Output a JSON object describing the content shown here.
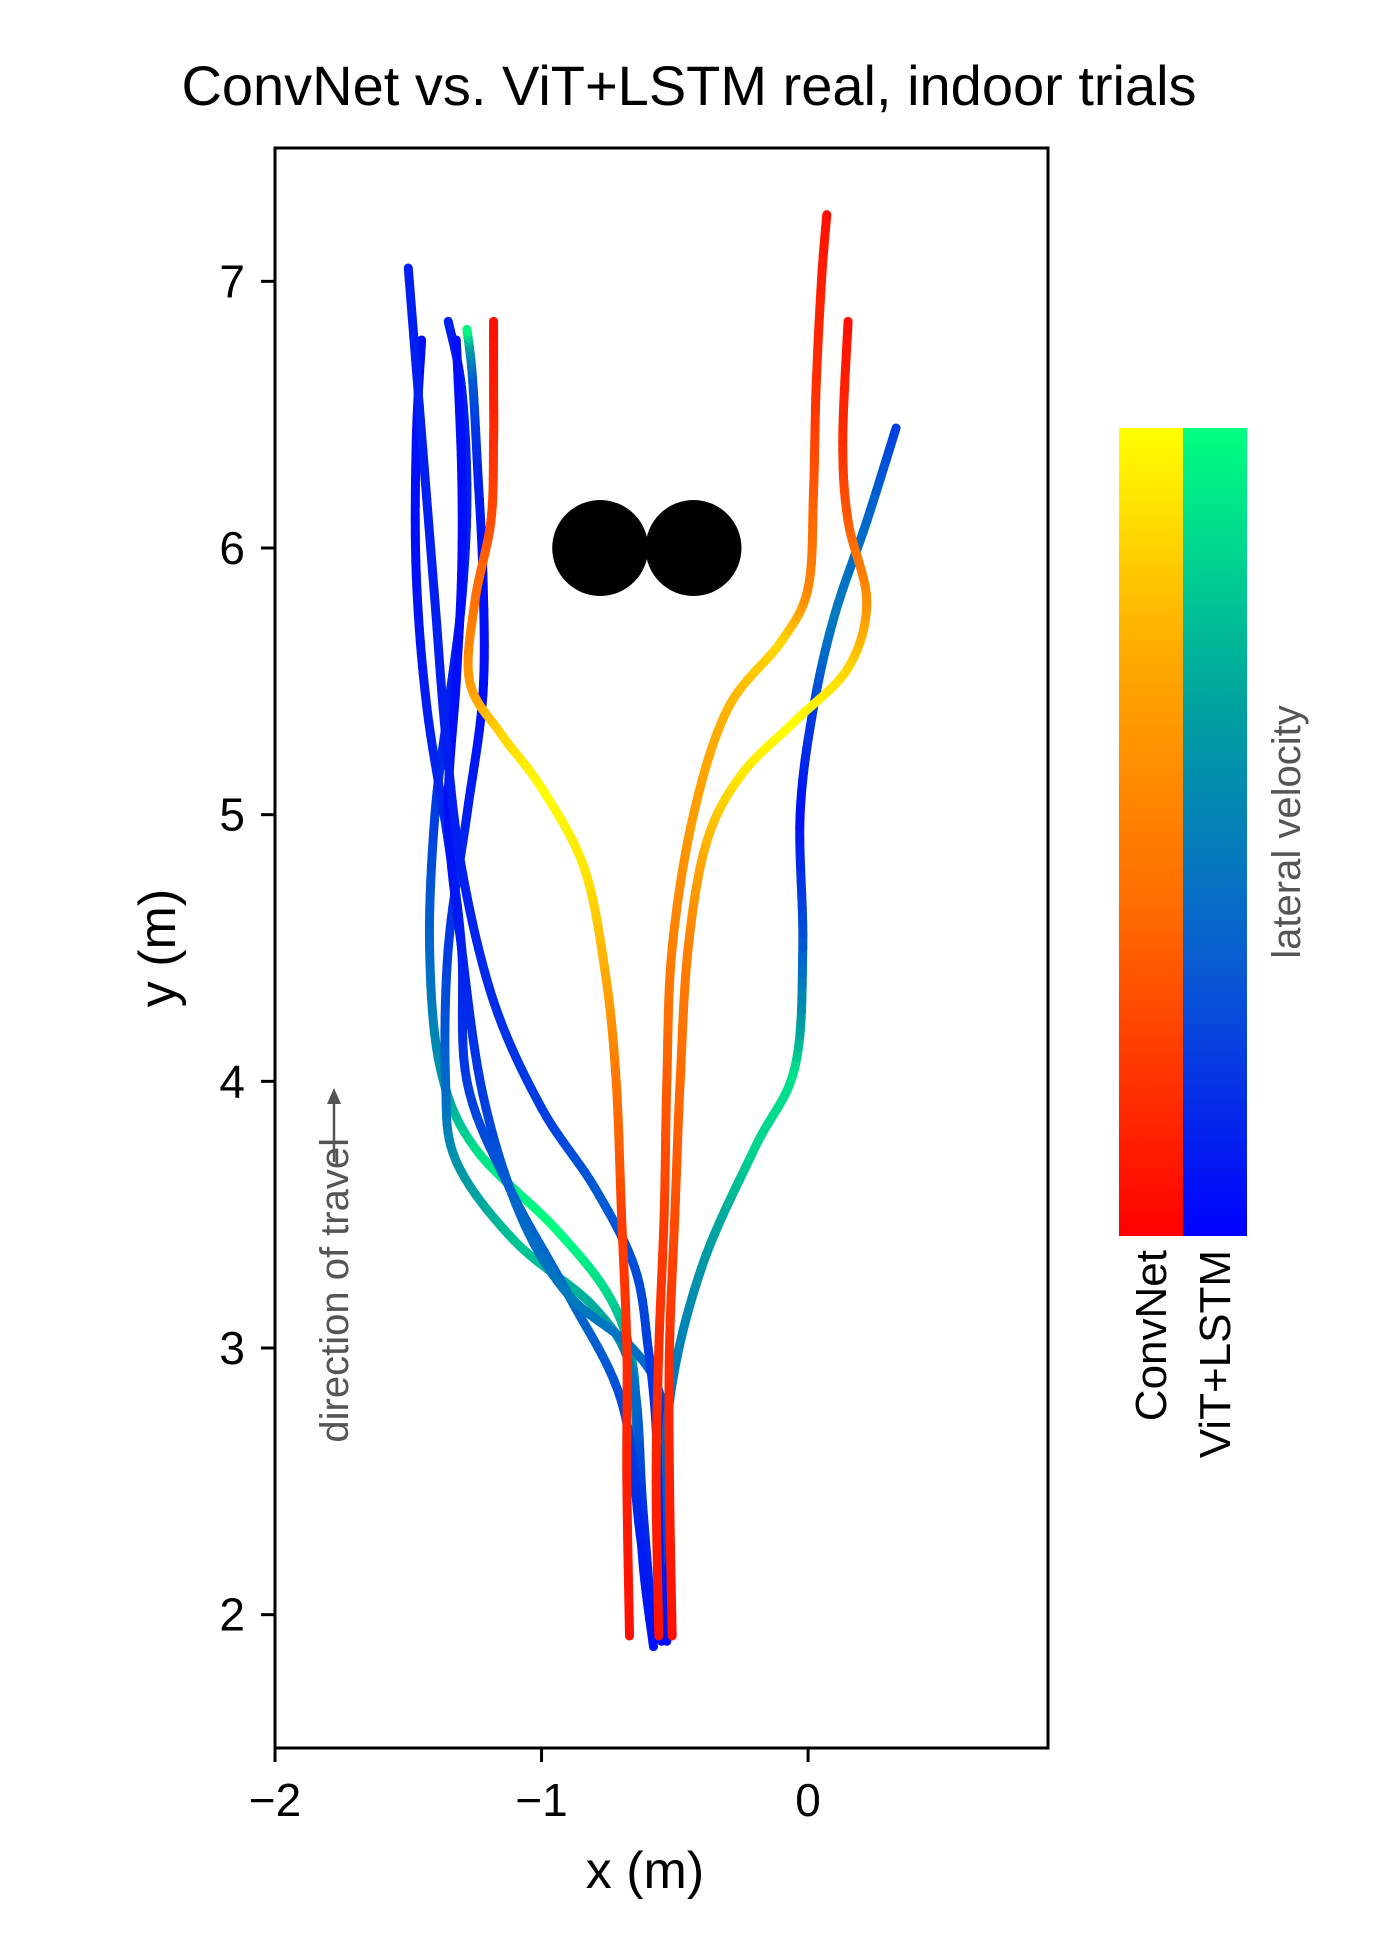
{
  "chart_data": {
    "type": "line",
    "title": "ConvNet vs. ViT+LSTM real, indoor trials",
    "xlabel": "x (m)",
    "ylabel": "y (m)",
    "xlim": [
      -2.0,
      0.9
    ],
    "ylim": [
      1.5,
      7.5
    ],
    "xticks": [
      -2,
      -1,
      0
    ],
    "xtick_labels": [
      "−2",
      "−1",
      "0"
    ],
    "yticks": [
      2,
      3,
      4,
      5,
      6,
      7
    ],
    "ytick_labels": [
      "2",
      "3",
      "4",
      "5",
      "6",
      "7"
    ],
    "grid": false,
    "annotation": "direction of travel",
    "obstacles": [
      {
        "x": -0.78,
        "y": 6.0,
        "r": 0.18
      },
      {
        "x": -0.43,
        "y": 6.0,
        "r": 0.18
      }
    ],
    "colorbar": {
      "label": "lateral velocity",
      "entries": [
        "ConvNet",
        "ViT+LSTM"
      ],
      "colors": {
        "ConvNet": [
          "#ff0000",
          "#ff6600",
          "#ffaa00",
          "#ffff00"
        ],
        "ViT+LSTM": [
          "#0000ff",
          "#0066cc",
          "#00a0a0",
          "#00ff80"
        ]
      }
    },
    "series": [
      {
        "model": "ConvNet",
        "points": [
          [
            -0.67,
            1.92
          ],
          [
            -0.68,
            2.5
          ],
          [
            -0.68,
            3.0
          ],
          [
            -0.7,
            3.5
          ],
          [
            -0.72,
            4.0
          ],
          [
            -0.76,
            4.4
          ],
          [
            -0.84,
            4.8
          ],
          [
            -1.0,
            5.1
          ],
          [
            -1.15,
            5.3
          ],
          [
            -1.27,
            5.5
          ],
          [
            -1.25,
            5.8
          ],
          [
            -1.19,
            6.1
          ],
          [
            -1.18,
            6.4
          ],
          [
            -1.18,
            6.6
          ],
          [
            -1.18,
            6.85
          ]
        ],
        "lateral_speed": [
          0.05,
          0.1,
          0.15,
          0.2,
          0.4,
          0.65,
          0.9,
          1.0,
          0.85,
          0.6,
          0.4,
          0.25,
          0.15,
          0.1,
          0.05
        ]
      },
      {
        "model": "ConvNet",
        "points": [
          [
            -0.56,
            1.92
          ],
          [
            -0.57,
            2.5
          ],
          [
            -0.56,
            3.0
          ],
          [
            -0.54,
            3.5
          ],
          [
            -0.53,
            4.0
          ],
          [
            -0.51,
            4.5
          ],
          [
            -0.43,
            5.0
          ],
          [
            -0.3,
            5.4
          ],
          [
            -0.1,
            5.65
          ],
          [
            0.0,
            5.85
          ],
          [
            0.02,
            6.2
          ],
          [
            0.03,
            6.6
          ],
          [
            0.05,
            7.0
          ],
          [
            0.07,
            7.25
          ]
        ],
        "lateral_speed": [
          0.05,
          0.1,
          0.15,
          0.2,
          0.3,
          0.45,
          0.6,
          0.7,
          0.85,
          0.5,
          0.3,
          0.15,
          0.1,
          0.05
        ]
      },
      {
        "model": "ConvNet",
        "points": [
          [
            -0.51,
            1.92
          ],
          [
            -0.52,
            2.5
          ],
          [
            -0.52,
            3.0
          ],
          [
            -0.5,
            3.5
          ],
          [
            -0.48,
            4.0
          ],
          [
            -0.45,
            4.5
          ],
          [
            -0.38,
            4.9
          ],
          [
            -0.25,
            5.15
          ],
          [
            -0.05,
            5.35
          ],
          [
            0.15,
            5.55
          ],
          [
            0.22,
            5.8
          ],
          [
            0.15,
            6.1
          ],
          [
            0.13,
            6.4
          ],
          [
            0.15,
            6.85
          ]
        ],
        "lateral_speed": [
          0.05,
          0.1,
          0.15,
          0.25,
          0.35,
          0.45,
          0.7,
          0.9,
          1.0,
          0.85,
          0.55,
          0.3,
          0.15,
          0.05
        ]
      },
      {
        "model": "ViT+LSTM",
        "points": [
          [
            -0.58,
            1.88
          ],
          [
            -0.62,
            2.2
          ],
          [
            -0.64,
            2.6
          ],
          [
            -0.66,
            2.95
          ],
          [
            -0.75,
            3.2
          ],
          [
            -0.95,
            3.45
          ],
          [
            -1.25,
            3.75
          ],
          [
            -1.38,
            4.05
          ],
          [
            -1.42,
            4.5
          ],
          [
            -1.4,
            5.0
          ],
          [
            -1.35,
            5.4
          ],
          [
            -1.3,
            5.8
          ],
          [
            -1.28,
            6.2
          ],
          [
            -1.3,
            6.6
          ],
          [
            -1.35,
            6.85
          ]
        ],
        "lateral_speed": [
          0.05,
          0.1,
          0.3,
          0.6,
          0.85,
          1.0,
          0.9,
          0.6,
          0.35,
          0.2,
          0.1,
          0.1,
          0.1,
          0.1,
          0.1
        ]
      },
      {
        "model": "ViT+LSTM",
        "points": [
          [
            -0.58,
            1.9
          ],
          [
            -0.62,
            2.4
          ],
          [
            -0.66,
            2.9
          ],
          [
            -0.8,
            3.15
          ],
          [
            -1.1,
            3.4
          ],
          [
            -1.32,
            3.7
          ],
          [
            -1.36,
            4.0
          ],
          [
            -1.35,
            4.5
          ],
          [
            -1.28,
            5.0
          ],
          [
            -1.22,
            5.45
          ],
          [
            -1.22,
            5.9
          ],
          [
            -1.24,
            6.3
          ],
          [
            -1.26,
            6.65
          ],
          [
            -1.28,
            6.82
          ]
        ],
        "lateral_speed": [
          0.05,
          0.15,
          0.4,
          0.7,
          0.8,
          0.6,
          0.35,
          0.2,
          0.1,
          0.05,
          0.05,
          0.1,
          0.3,
          1.0
        ]
      },
      {
        "model": "ViT+LSTM",
        "points": [
          [
            -0.58,
            1.9
          ],
          [
            -0.63,
            2.3
          ],
          [
            -0.7,
            2.8
          ],
          [
            -0.9,
            3.2
          ],
          [
            -1.12,
            3.6
          ],
          [
            -1.28,
            4.0
          ],
          [
            -1.3,
            4.5
          ],
          [
            -1.35,
            4.9
          ],
          [
            -1.43,
            5.4
          ],
          [
            -1.47,
            5.9
          ],
          [
            -1.47,
            6.4
          ],
          [
            -1.45,
            6.78
          ]
        ],
        "lateral_speed": [
          0.05,
          0.1,
          0.25,
          0.35,
          0.3,
          0.2,
          0.1,
          0.15,
          0.1,
          0.05,
          0.05,
          0.05
        ]
      },
      {
        "model": "ViT+LSTM",
        "points": [
          [
            -0.53,
            1.9
          ],
          [
            -0.53,
            2.4
          ],
          [
            -0.55,
            2.8
          ],
          [
            -0.66,
            3.0
          ],
          [
            -0.9,
            3.2
          ],
          [
            -1.08,
            3.5
          ],
          [
            -1.22,
            3.95
          ],
          [
            -1.3,
            4.5
          ],
          [
            -1.35,
            5.0
          ],
          [
            -1.32,
            5.5
          ],
          [
            -1.3,
            5.9
          ],
          [
            -1.3,
            6.3
          ],
          [
            -1.32,
            6.78
          ]
        ],
        "lateral_speed": [
          0.05,
          0.1,
          0.2,
          0.4,
          0.45,
          0.35,
          0.2,
          0.1,
          0.05,
          0.05,
          0.05,
          0.05,
          0.05
        ]
      },
      {
        "model": "ViT+LSTM",
        "points": [
          [
            -0.55,
            2.2
          ],
          [
            -0.52,
            2.8
          ],
          [
            -0.4,
            3.3
          ],
          [
            -0.2,
            3.75
          ],
          [
            -0.05,
            4.05
          ],
          [
            -0.02,
            4.5
          ],
          [
            -0.03,
            5.0
          ],
          [
            0.02,
            5.4
          ],
          [
            0.1,
            5.75
          ],
          [
            0.22,
            6.1
          ],
          [
            0.33,
            6.45
          ]
        ],
        "lateral_speed": [
          0.2,
          0.4,
          0.6,
          0.85,
          0.9,
          0.3,
          0.05,
          0.2,
          0.45,
          0.35,
          0.2
        ]
      },
      {
        "model": "ViT+LSTM",
        "points": [
          [
            -0.55,
            1.9
          ],
          [
            -0.56,
            2.3
          ],
          [
            -0.57,
            2.7
          ],
          [
            -0.6,
            3.0
          ],
          [
            -0.65,
            3.3
          ],
          [
            -0.8,
            3.6
          ],
          [
            -1.0,
            3.9
          ],
          [
            -1.18,
            4.3
          ],
          [
            -1.3,
            4.8
          ],
          [
            -1.36,
            5.3
          ],
          [
            -1.4,
            5.8
          ],
          [
            -1.44,
            6.3
          ],
          [
            -1.5,
            7.05
          ]
        ],
        "lateral_speed": [
          0.05,
          0.1,
          0.15,
          0.2,
          0.25,
          0.3,
          0.2,
          0.15,
          0.1,
          0.1,
          0.1,
          0.1,
          0.1
        ]
      }
    ]
  }
}
